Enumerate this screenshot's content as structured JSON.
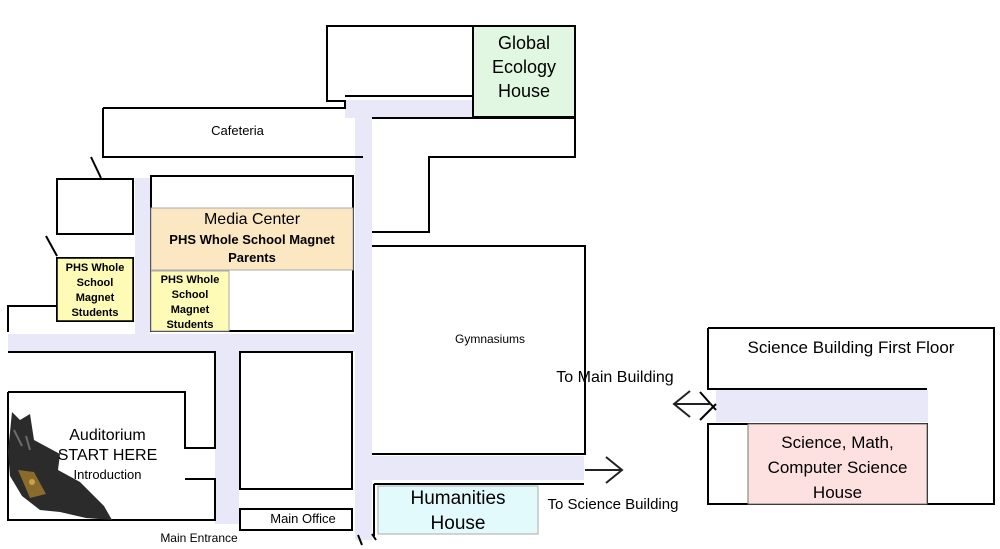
{
  "map": {
    "rooms": {
      "cafeteria": "Cafeteria",
      "global_ecology": [
        "Global",
        "Ecology",
        "House"
      ],
      "media_center": {
        "title": "Media Center",
        "line2": "PHS Whole School Magnet",
        "line3": "Parents"
      },
      "students_left": [
        "PHS Whole",
        "School",
        "Magnet",
        "Students"
      ],
      "students_right": [
        "PHS Whole",
        "School",
        "Magnet",
        "Students"
      ],
      "gymnasiums": "Gymnasiums",
      "auditorium": [
        "Auditorium",
        "START HERE",
        "Introduction"
      ],
      "main_office": "Main Office",
      "main_entrance": "Main Entrance",
      "humanities": [
        "Humanities",
        "House"
      ],
      "to_science": "To Science Building",
      "to_main": "To Main Building",
      "science_floor": "Science Building First Floor",
      "science_house": [
        "Science, Math,",
        "Computer Science",
        "House"
      ]
    },
    "colors": {
      "hallway": "#e8e8f8",
      "global_ecology": "#e2f7e2",
      "media_center": "#fbe8c2",
      "students": "#fdfbb6",
      "humanities": "#e2fafc",
      "science_house": "#fde0e0"
    },
    "icons": [
      "owl-mascot-icon",
      "arrow-right-icon",
      "arrow-left-icon"
    ]
  }
}
